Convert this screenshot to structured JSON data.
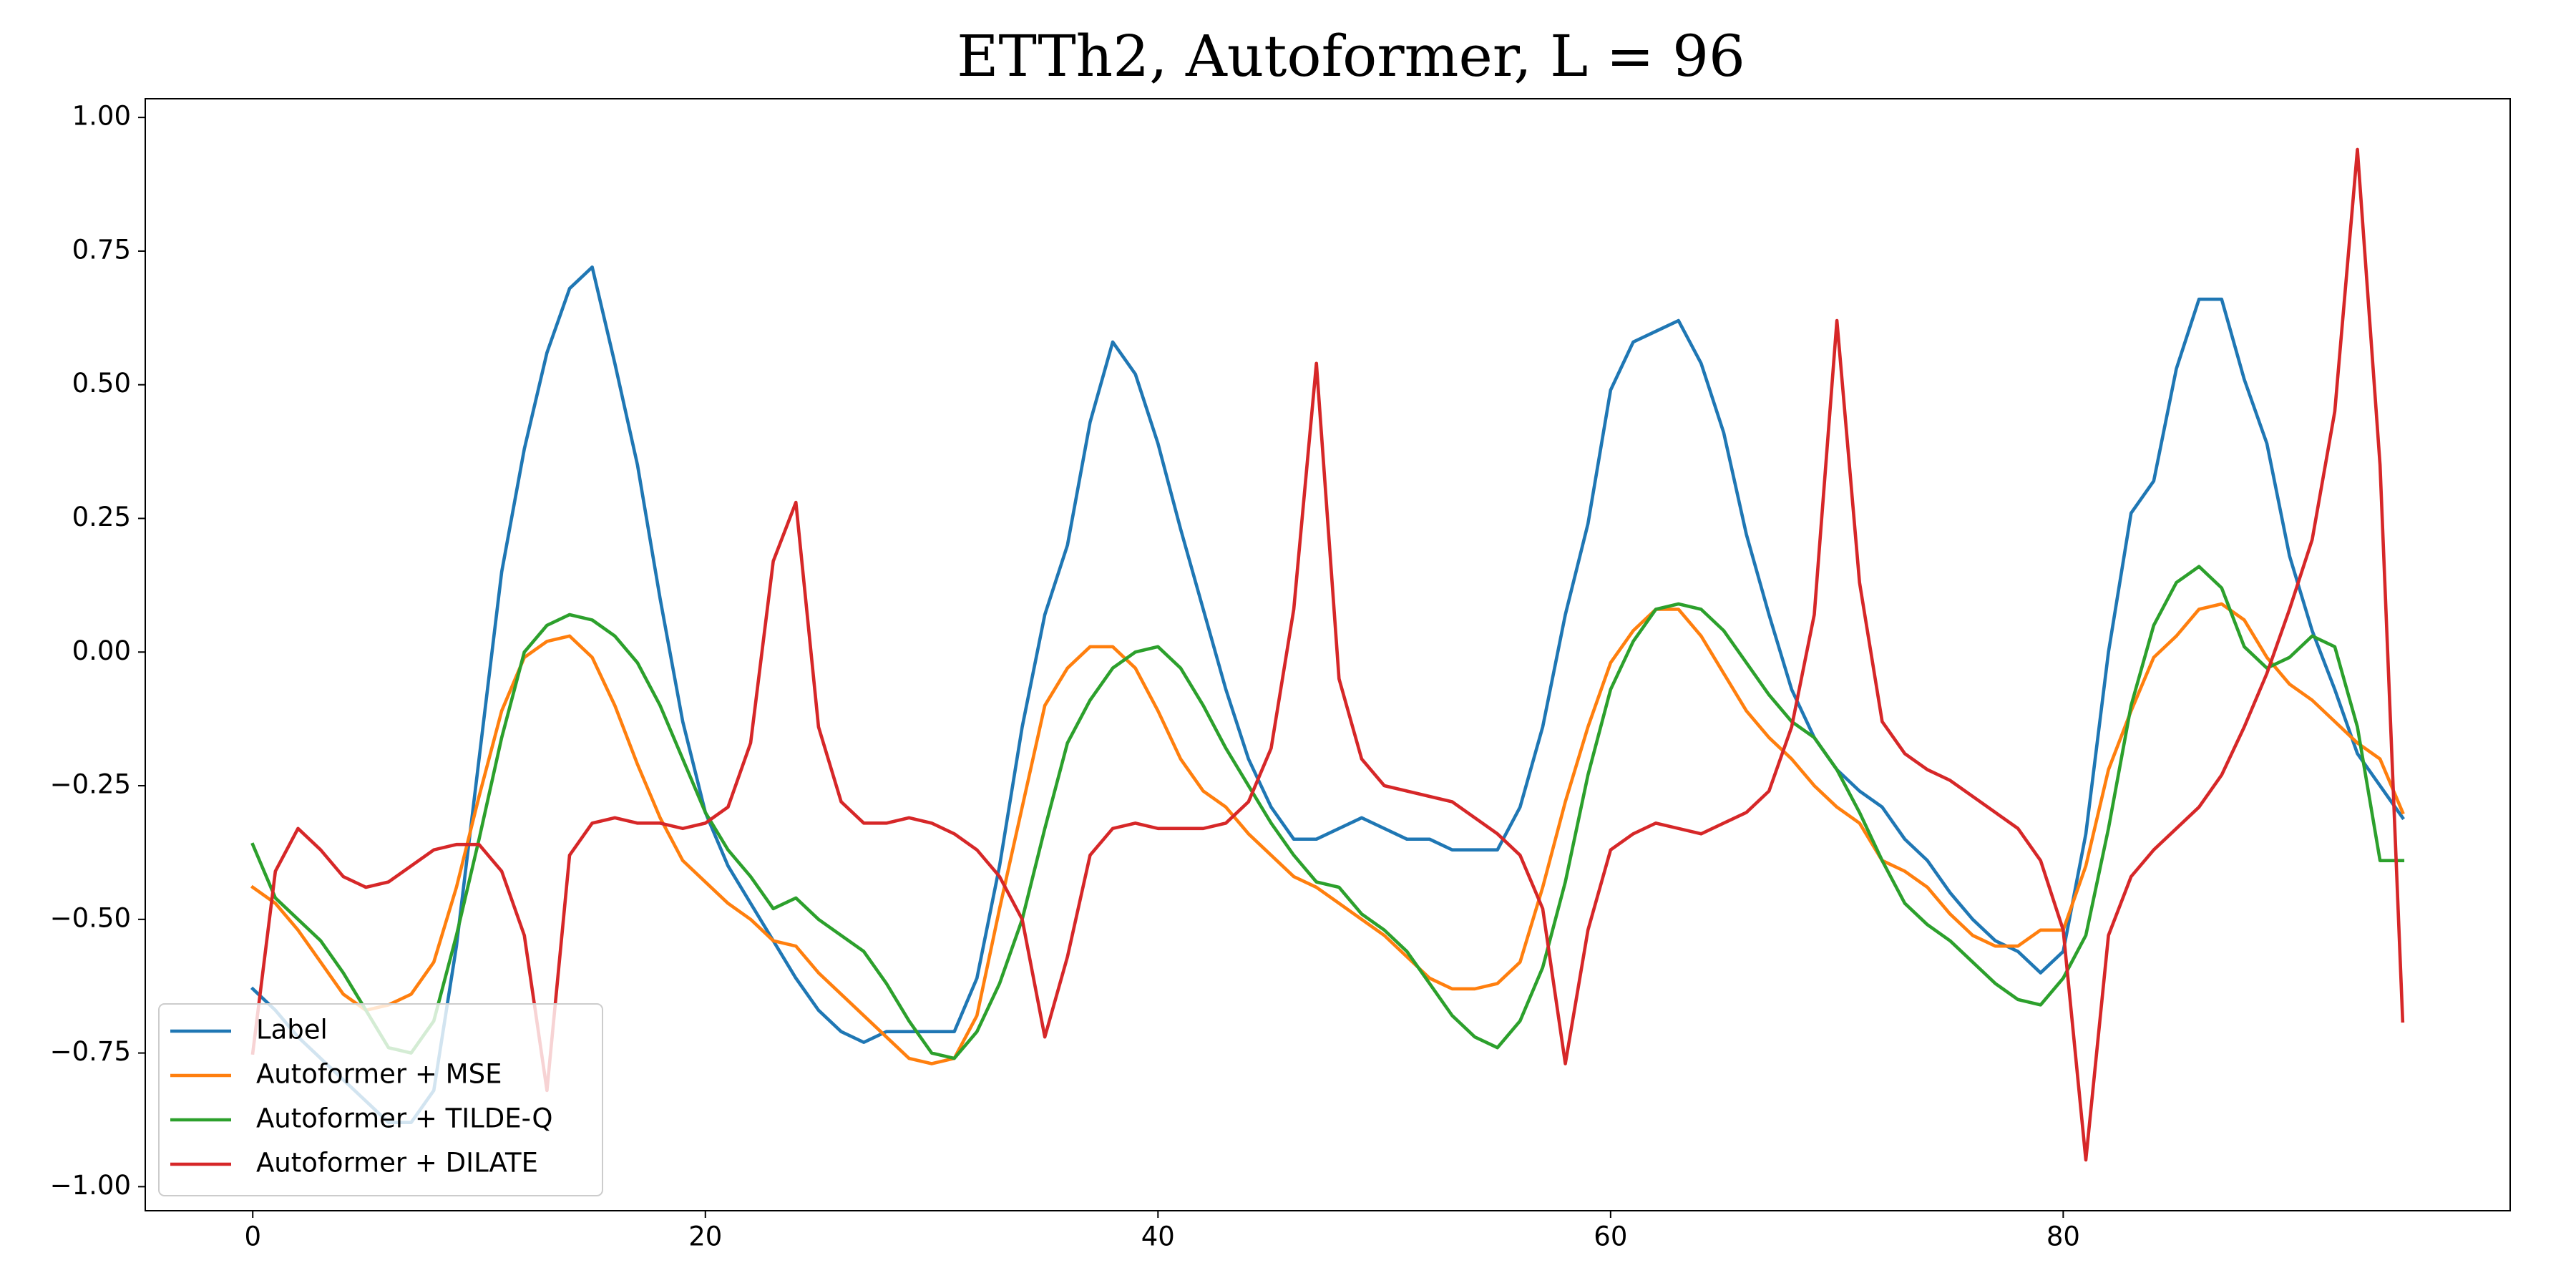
{
  "chart_data": {
    "type": "line",
    "title": "ETTh2, Autoformer, L = 96",
    "x": [
      0,
      1,
      2,
      3,
      4,
      5,
      6,
      7,
      8,
      9,
      10,
      11,
      12,
      13,
      14,
      15,
      16,
      17,
      18,
      19,
      20,
      21,
      22,
      23,
      24,
      25,
      26,
      27,
      28,
      29,
      30,
      31,
      32,
      33,
      34,
      35,
      36,
      37,
      38,
      39,
      40,
      41,
      42,
      43,
      44,
      45,
      46,
      47,
      48,
      49,
      50,
      51,
      52,
      53,
      54,
      55,
      56,
      57,
      58,
      59,
      60,
      61,
      62,
      63,
      64,
      65,
      66,
      67,
      68,
      69,
      70,
      71,
      72,
      73,
      74,
      75,
      76,
      77,
      78,
      79,
      80,
      81,
      82,
      83,
      84,
      85,
      86,
      87,
      88,
      89,
      90,
      91,
      92,
      93,
      94,
      95
    ],
    "series": [
      {
        "name": "Label",
        "color": "#1f77b4",
        "values": [
          -0.63,
          -0.67,
          -0.72,
          -0.76,
          -0.8,
          -0.84,
          -0.88,
          -0.88,
          -0.82,
          -0.55,
          -0.2,
          0.15,
          0.38,
          0.56,
          0.68,
          0.72,
          0.54,
          0.35,
          0.1,
          -0.13,
          -0.3,
          -0.4,
          -0.47,
          -0.54,
          -0.61,
          -0.67,
          -0.71,
          -0.73,
          -0.71,
          -0.71,
          -0.71,
          -0.71,
          -0.61,
          -0.4,
          -0.14,
          0.07,
          0.2,
          0.43,
          0.58,
          0.52,
          0.39,
          0.23,
          0.08,
          -0.07,
          -0.2,
          -0.29,
          -0.35,
          -0.35,
          -0.33,
          -0.31,
          -0.33,
          -0.35,
          -0.35,
          -0.37,
          -0.37,
          -0.37,
          -0.29,
          -0.14,
          0.07,
          0.24,
          0.49,
          0.58,
          0.6,
          0.62,
          0.54,
          0.41,
          0.22,
          0.07,
          -0.07,
          -0.16,
          -0.22,
          -0.26,
          -0.29,
          -0.35,
          -0.39,
          -0.45,
          -0.5,
          -0.54,
          -0.56,
          -0.6,
          -0.56,
          -0.34,
          0.0,
          0.26,
          0.32,
          0.53,
          0.66,
          0.66,
          0.51,
          0.39,
          0.18,
          0.04,
          -0.07,
          -0.19,
          -0.25,
          -0.31
        ]
      },
      {
        "name": "Autoformer + MSE",
        "color": "#ff7f0e",
        "values": [
          -0.44,
          -0.47,
          -0.52,
          -0.58,
          -0.64,
          -0.67,
          -0.66,
          -0.64,
          -0.58,
          -0.44,
          -0.27,
          -0.11,
          -0.01,
          0.02,
          0.03,
          -0.01,
          -0.1,
          -0.21,
          -0.31,
          -0.39,
          -0.43,
          -0.47,
          -0.5,
          -0.54,
          -0.55,
          -0.6,
          -0.64,
          -0.68,
          -0.72,
          -0.76,
          -0.77,
          -0.76,
          -0.68,
          -0.48,
          -0.29,
          -0.1,
          -0.03,
          0.01,
          0.01,
          -0.03,
          -0.11,
          -0.2,
          -0.26,
          -0.29,
          -0.34,
          -0.38,
          -0.42,
          -0.44,
          -0.47,
          -0.5,
          -0.53,
          -0.57,
          -0.61,
          -0.63,
          -0.63,
          -0.62,
          -0.58,
          -0.44,
          -0.28,
          -0.14,
          -0.02,
          0.04,
          0.08,
          0.08,
          0.03,
          -0.04,
          -0.11,
          -0.16,
          -0.2,
          -0.25,
          -0.29,
          -0.32,
          -0.39,
          -0.41,
          -0.44,
          -0.49,
          -0.53,
          -0.55,
          -0.55,
          -0.52,
          -0.52,
          -0.4,
          -0.22,
          -0.11,
          -0.01,
          0.03,
          0.08,
          0.09,
          0.06,
          -0.01,
          -0.06,
          -0.09,
          -0.13,
          -0.17,
          -0.2,
          -0.3
        ]
      },
      {
        "name": "Autoformer + TILDE-Q",
        "color": "#2ca02c",
        "values": [
          -0.36,
          -0.46,
          -0.5,
          -0.54,
          -0.6,
          -0.67,
          -0.74,
          -0.75,
          -0.69,
          -0.53,
          -0.35,
          -0.16,
          0.0,
          0.05,
          0.07,
          0.06,
          0.03,
          -0.02,
          -0.1,
          -0.2,
          -0.3,
          -0.37,
          -0.42,
          -0.48,
          -0.46,
          -0.5,
          -0.53,
          -0.56,
          -0.62,
          -0.69,
          -0.75,
          -0.76,
          -0.71,
          -0.62,
          -0.5,
          -0.33,
          -0.17,
          -0.09,
          -0.03,
          0.0,
          0.01,
          -0.03,
          -0.1,
          -0.18,
          -0.25,
          -0.32,
          -0.38,
          -0.43,
          -0.44,
          -0.49,
          -0.52,
          -0.56,
          -0.62,
          -0.68,
          -0.72,
          -0.74,
          -0.69,
          -0.59,
          -0.43,
          -0.23,
          -0.07,
          0.02,
          0.08,
          0.09,
          0.08,
          0.04,
          -0.02,
          -0.08,
          -0.13,
          -0.16,
          -0.22,
          -0.3,
          -0.39,
          -0.47,
          -0.51,
          -0.54,
          -0.58,
          -0.62,
          -0.65,
          -0.66,
          -0.61,
          -0.53,
          -0.33,
          -0.1,
          0.05,
          0.13,
          0.16,
          0.12,
          0.01,
          -0.03,
          -0.01,
          0.03,
          0.01,
          -0.14,
          -0.39,
          -0.39
        ]
      },
      {
        "name": "Autoformer + DILATE",
        "color": "#d62728",
        "values": [
          -0.75,
          -0.41,
          -0.33,
          -0.37,
          -0.42,
          -0.44,
          -0.43,
          -0.4,
          -0.37,
          -0.36,
          -0.36,
          -0.41,
          -0.53,
          -0.82,
          -0.38,
          -0.32,
          -0.31,
          -0.32,
          -0.32,
          -0.33,
          -0.32,
          -0.29,
          -0.17,
          0.17,
          0.28,
          -0.14,
          -0.28,
          -0.32,
          -0.32,
          -0.31,
          -0.32,
          -0.34,
          -0.37,
          -0.42,
          -0.5,
          -0.72,
          -0.57,
          -0.38,
          -0.33,
          -0.32,
          -0.33,
          -0.33,
          -0.33,
          -0.32,
          -0.28,
          -0.18,
          0.08,
          0.54,
          -0.05,
          -0.2,
          -0.25,
          -0.26,
          -0.27,
          -0.28,
          -0.31,
          -0.34,
          -0.38,
          -0.48,
          -0.77,
          -0.52,
          -0.37,
          -0.34,
          -0.32,
          -0.33,
          -0.34,
          -0.32,
          -0.3,
          -0.26,
          -0.14,
          0.07,
          0.62,
          0.13,
          -0.13,
          -0.19,
          -0.22,
          -0.24,
          -0.27,
          -0.3,
          -0.33,
          -0.39,
          -0.52,
          -0.95,
          -0.53,
          -0.42,
          -0.37,
          -0.33,
          -0.29,
          -0.23,
          -0.14,
          -0.04,
          0.08,
          0.21,
          0.45,
          0.94,
          0.35,
          -0.69
        ]
      }
    ],
    "xlim": [
      -4.75,
      99.75
    ],
    "ylim": [
      -1.045,
      1.035
    ],
    "xticks": [
      0,
      20,
      40,
      60,
      80
    ],
    "yticks": [
      {
        "value": -1,
        "label": "−1.00"
      },
      {
        "value": -0.75,
        "label": "−0.75"
      },
      {
        "value": -0.5,
        "label": "−0.50"
      },
      {
        "value": -0.25,
        "label": "−0.25"
      },
      {
        "value": 0,
        "label": "0.00"
      },
      {
        "value": 0.25,
        "label": "0.25"
      },
      {
        "value": 0.5,
        "label": "0.50"
      },
      {
        "value": 0.75,
        "label": "0.75"
      },
      {
        "value": 1,
        "label": "1.00"
      }
    ],
    "grid": false,
    "legend": "lower left"
  }
}
